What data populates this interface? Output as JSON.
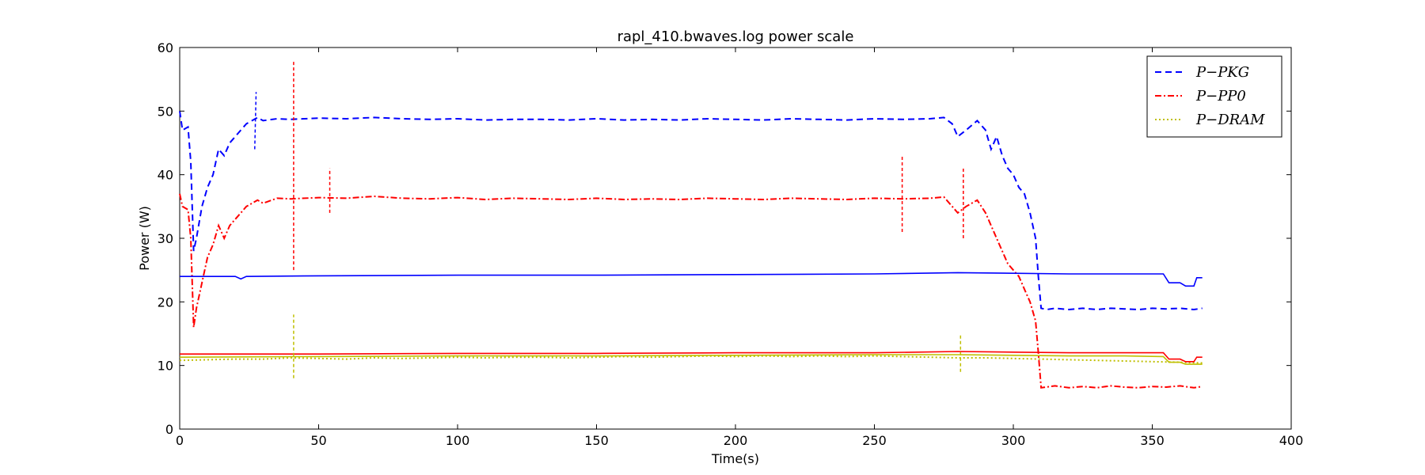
{
  "chart_data": {
    "type": "line",
    "title": "rapl_410.bwaves.log power scale",
    "xlabel": "Time(s)",
    "ylabel": "Power (W)",
    "xlim": [
      0,
      400
    ],
    "ylim": [
      0,
      60
    ],
    "xticks": [
      "0",
      "50",
      "100",
      "150",
      "200",
      "250",
      "300",
      "350",
      "400"
    ],
    "yticks": [
      "0",
      "10",
      "20",
      "30",
      "40",
      "50",
      "60"
    ],
    "grid": false,
    "legend_position": "top-right",
    "series": [
      {
        "name": "P−PKG",
        "color": "#0000ff",
        "style": "dashed",
        "points": [
          [
            0,
            50
          ],
          [
            1,
            47
          ],
          [
            3,
            47.5
          ],
          [
            4,
            42
          ],
          [
            5,
            28
          ],
          [
            6,
            30
          ],
          [
            8,
            35
          ],
          [
            10,
            38
          ],
          [
            12,
            40
          ],
          [
            14,
            44
          ],
          [
            16,
            43
          ],
          [
            18,
            45
          ],
          [
            20,
            46
          ],
          [
            22,
            47
          ],
          [
            24,
            48
          ],
          [
            26,
            48.5
          ],
          [
            28,
            49
          ],
          [
            30,
            48.5
          ],
          [
            35,
            48.8
          ],
          [
            40,
            48.7
          ],
          [
            50,
            48.9
          ],
          [
            60,
            48.8
          ],
          [
            70,
            49
          ],
          [
            80,
            48.8
          ],
          [
            90,
            48.7
          ],
          [
            100,
            48.8
          ],
          [
            110,
            48.6
          ],
          [
            120,
            48.7
          ],
          [
            130,
            48.7
          ],
          [
            140,
            48.6
          ],
          [
            150,
            48.8
          ],
          [
            160,
            48.6
          ],
          [
            170,
            48.7
          ],
          [
            180,
            48.6
          ],
          [
            190,
            48.8
          ],
          [
            200,
            48.7
          ],
          [
            210,
            48.6
          ],
          [
            220,
            48.8
          ],
          [
            230,
            48.7
          ],
          [
            240,
            48.6
          ],
          [
            250,
            48.8
          ],
          [
            260,
            48.7
          ],
          [
            270,
            48.8
          ],
          [
            275,
            49
          ],
          [
            278,
            48
          ],
          [
            280,
            46
          ],
          [
            283,
            47
          ],
          [
            287,
            48.5
          ],
          [
            290,
            47
          ],
          [
            292,
            44
          ],
          [
            294,
            46
          ],
          [
            296,
            43
          ],
          [
            298,
            41
          ],
          [
            300,
            40
          ],
          [
            302,
            38
          ],
          [
            304,
            37
          ],
          [
            306,
            34
          ],
          [
            308,
            30
          ],
          [
            309,
            24
          ],
          [
            310,
            19
          ],
          [
            312,
            18.8
          ],
          [
            315,
            19
          ],
          [
            320,
            18.8
          ],
          [
            325,
            19
          ],
          [
            330,
            18.8
          ],
          [
            335,
            19
          ],
          [
            340,
            18.9
          ],
          [
            345,
            18.8
          ],
          [
            350,
            19
          ],
          [
            355,
            18.9
          ],
          [
            360,
            19
          ],
          [
            365,
            18.8
          ],
          [
            368,
            19
          ]
        ]
      },
      {
        "name": "P−PP0",
        "color": "#ff0000",
        "style": "dashdot",
        "points": [
          [
            0,
            37
          ],
          [
            1,
            35
          ],
          [
            3,
            34.5
          ],
          [
            4,
            30
          ],
          [
            5,
            16
          ],
          [
            6,
            19
          ],
          [
            8,
            23
          ],
          [
            10,
            27
          ],
          [
            12,
            29
          ],
          [
            14,
            32
          ],
          [
            16,
            30
          ],
          [
            18,
            32
          ],
          [
            20,
            33
          ],
          [
            22,
            34
          ],
          [
            24,
            35
          ],
          [
            26,
            35.5
          ],
          [
            28,
            36
          ],
          [
            30,
            35.5
          ],
          [
            35,
            36.3
          ],
          [
            40,
            36.2
          ],
          [
            50,
            36.4
          ],
          [
            60,
            36.3
          ],
          [
            70,
            36.6
          ],
          [
            80,
            36.3
          ],
          [
            90,
            36.2
          ],
          [
            100,
            36.4
          ],
          [
            110,
            36.1
          ],
          [
            120,
            36.3
          ],
          [
            130,
            36.2
          ],
          [
            140,
            36.1
          ],
          [
            150,
            36.3
          ],
          [
            160,
            36.1
          ],
          [
            170,
            36.2
          ],
          [
            180,
            36.1
          ],
          [
            190,
            36.3
          ],
          [
            200,
            36.2
          ],
          [
            210,
            36.1
          ],
          [
            220,
            36.3
          ],
          [
            230,
            36.2
          ],
          [
            240,
            36.1
          ],
          [
            250,
            36.3
          ],
          [
            260,
            36.2
          ],
          [
            270,
            36.3
          ],
          [
            275,
            36.5
          ],
          [
            278,
            35
          ],
          [
            280,
            34
          ],
          [
            283,
            35
          ],
          [
            287,
            36
          ],
          [
            290,
            34
          ],
          [
            292,
            32
          ],
          [
            294,
            30
          ],
          [
            296,
            28
          ],
          [
            298,
            26
          ],
          [
            300,
            25
          ],
          [
            302,
            24
          ],
          [
            304,
            22
          ],
          [
            306,
            20
          ],
          [
            308,
            17
          ],
          [
            309,
            12
          ],
          [
            310,
            6.5
          ],
          [
            315,
            6.8
          ],
          [
            320,
            6.5
          ],
          [
            325,
            6.7
          ],
          [
            330,
            6.5
          ],
          [
            335,
            6.8
          ],
          [
            340,
            6.6
          ],
          [
            345,
            6.5
          ],
          [
            350,
            6.7
          ],
          [
            355,
            6.6
          ],
          [
            360,
            6.8
          ],
          [
            365,
            6.5
          ],
          [
            368,
            6.7
          ]
        ]
      },
      {
        "name": "P−DRAM",
        "color": "#bfbf00",
        "style": "dotted",
        "points": [
          [
            0,
            10.8
          ],
          [
            10,
            10.9
          ],
          [
            20,
            11
          ],
          [
            30,
            11
          ],
          [
            40,
            11.2
          ],
          [
            50,
            11.1
          ],
          [
            60,
            11
          ],
          [
            70,
            11.2
          ],
          [
            80,
            11.1
          ],
          [
            90,
            11.2
          ],
          [
            100,
            11.3
          ],
          [
            110,
            11.2
          ],
          [
            120,
            11.3
          ],
          [
            130,
            11.3
          ],
          [
            140,
            11.2
          ],
          [
            150,
            11.3
          ],
          [
            160,
            11.4
          ],
          [
            170,
            11.3
          ],
          [
            180,
            11.4
          ],
          [
            190,
            11.5
          ],
          [
            200,
            11.4
          ],
          [
            210,
            11.5
          ],
          [
            220,
            11.4
          ],
          [
            230,
            11.5
          ],
          [
            240,
            11.4
          ],
          [
            250,
            11.5
          ],
          [
            260,
            11.4
          ],
          [
            270,
            11.3
          ],
          [
            280,
            11.2
          ],
          [
            290,
            11.2
          ],
          [
            300,
            11.1
          ],
          [
            310,
            11
          ],
          [
            320,
            10.9
          ],
          [
            330,
            10.8
          ],
          [
            340,
            10.7
          ],
          [
            350,
            10.6
          ],
          [
            360,
            10.5
          ],
          [
            368,
            10.4
          ]
        ]
      },
      {
        "name": "",
        "color": "#0000ff",
        "style": "solid",
        "points": [
          [
            0,
            24
          ],
          [
            20,
            24
          ],
          [
            22,
            23.6
          ],
          [
            24,
            24
          ],
          [
            50,
            24.1
          ],
          [
            100,
            24.2
          ],
          [
            150,
            24.2
          ],
          [
            200,
            24.3
          ],
          [
            250,
            24.4
          ],
          [
            280,
            24.6
          ],
          [
            300,
            24.5
          ],
          [
            320,
            24.4
          ],
          [
            340,
            24.4
          ],
          [
            354,
            24.4
          ],
          [
            356,
            23
          ],
          [
            360,
            23
          ],
          [
            362,
            22.5
          ],
          [
            365,
            22.5
          ],
          [
            366,
            23.8
          ],
          [
            368,
            23.8
          ]
        ]
      },
      {
        "name": "",
        "color": "#ff0000",
        "style": "solid",
        "points": [
          [
            0,
            11.8
          ],
          [
            20,
            11.8
          ],
          [
            50,
            11.8
          ],
          [
            100,
            11.9
          ],
          [
            150,
            11.9
          ],
          [
            200,
            12
          ],
          [
            250,
            12
          ],
          [
            280,
            12.2
          ],
          [
            300,
            12.1
          ],
          [
            320,
            12
          ],
          [
            340,
            12
          ],
          [
            354,
            12
          ],
          [
            356,
            11
          ],
          [
            360,
            11
          ],
          [
            362,
            10.6
          ],
          [
            365,
            10.6
          ],
          [
            366,
            11.3
          ],
          [
            368,
            11.3
          ]
        ]
      },
      {
        "name": "",
        "color": "#bfbf00",
        "style": "solid",
        "points": [
          [
            0,
            11.3
          ],
          [
            50,
            11.4
          ],
          [
            100,
            11.5
          ],
          [
            150,
            11.5
          ],
          [
            200,
            11.6
          ],
          [
            250,
            11.7
          ],
          [
            280,
            11.7
          ],
          [
            300,
            11.6
          ],
          [
            320,
            11.5
          ],
          [
            340,
            11.5
          ],
          [
            354,
            11.4
          ],
          [
            356,
            10.5
          ],
          [
            360,
            10.5
          ],
          [
            362,
            10.2
          ],
          [
            368,
            10.2
          ]
        ]
      }
    ],
    "spikes": [
      {
        "color": "#0000ff",
        "x": [
          27,
          27.5
        ],
        "y": [
          44,
          53
        ]
      },
      {
        "color": "#ff0000",
        "x": [
          41,
          41
        ],
        "y": [
          25,
          58
        ]
      },
      {
        "color": "#ff0000",
        "x": [
          54,
          54
        ],
        "y": [
          34,
          41
        ]
      },
      {
        "color": "#ff0000",
        "x": [
          260,
          260
        ],
        "y": [
          31,
          43
        ]
      },
      {
        "color": "#ff0000",
        "x": [
          282,
          282
        ],
        "y": [
          30,
          41
        ]
      },
      {
        "color": "#bfbf00",
        "x": [
          41,
          41
        ],
        "y": [
          8,
          18
        ]
      },
      {
        "color": "#bfbf00",
        "x": [
          281,
          281
        ],
        "y": [
          9,
          15
        ]
      }
    ]
  }
}
